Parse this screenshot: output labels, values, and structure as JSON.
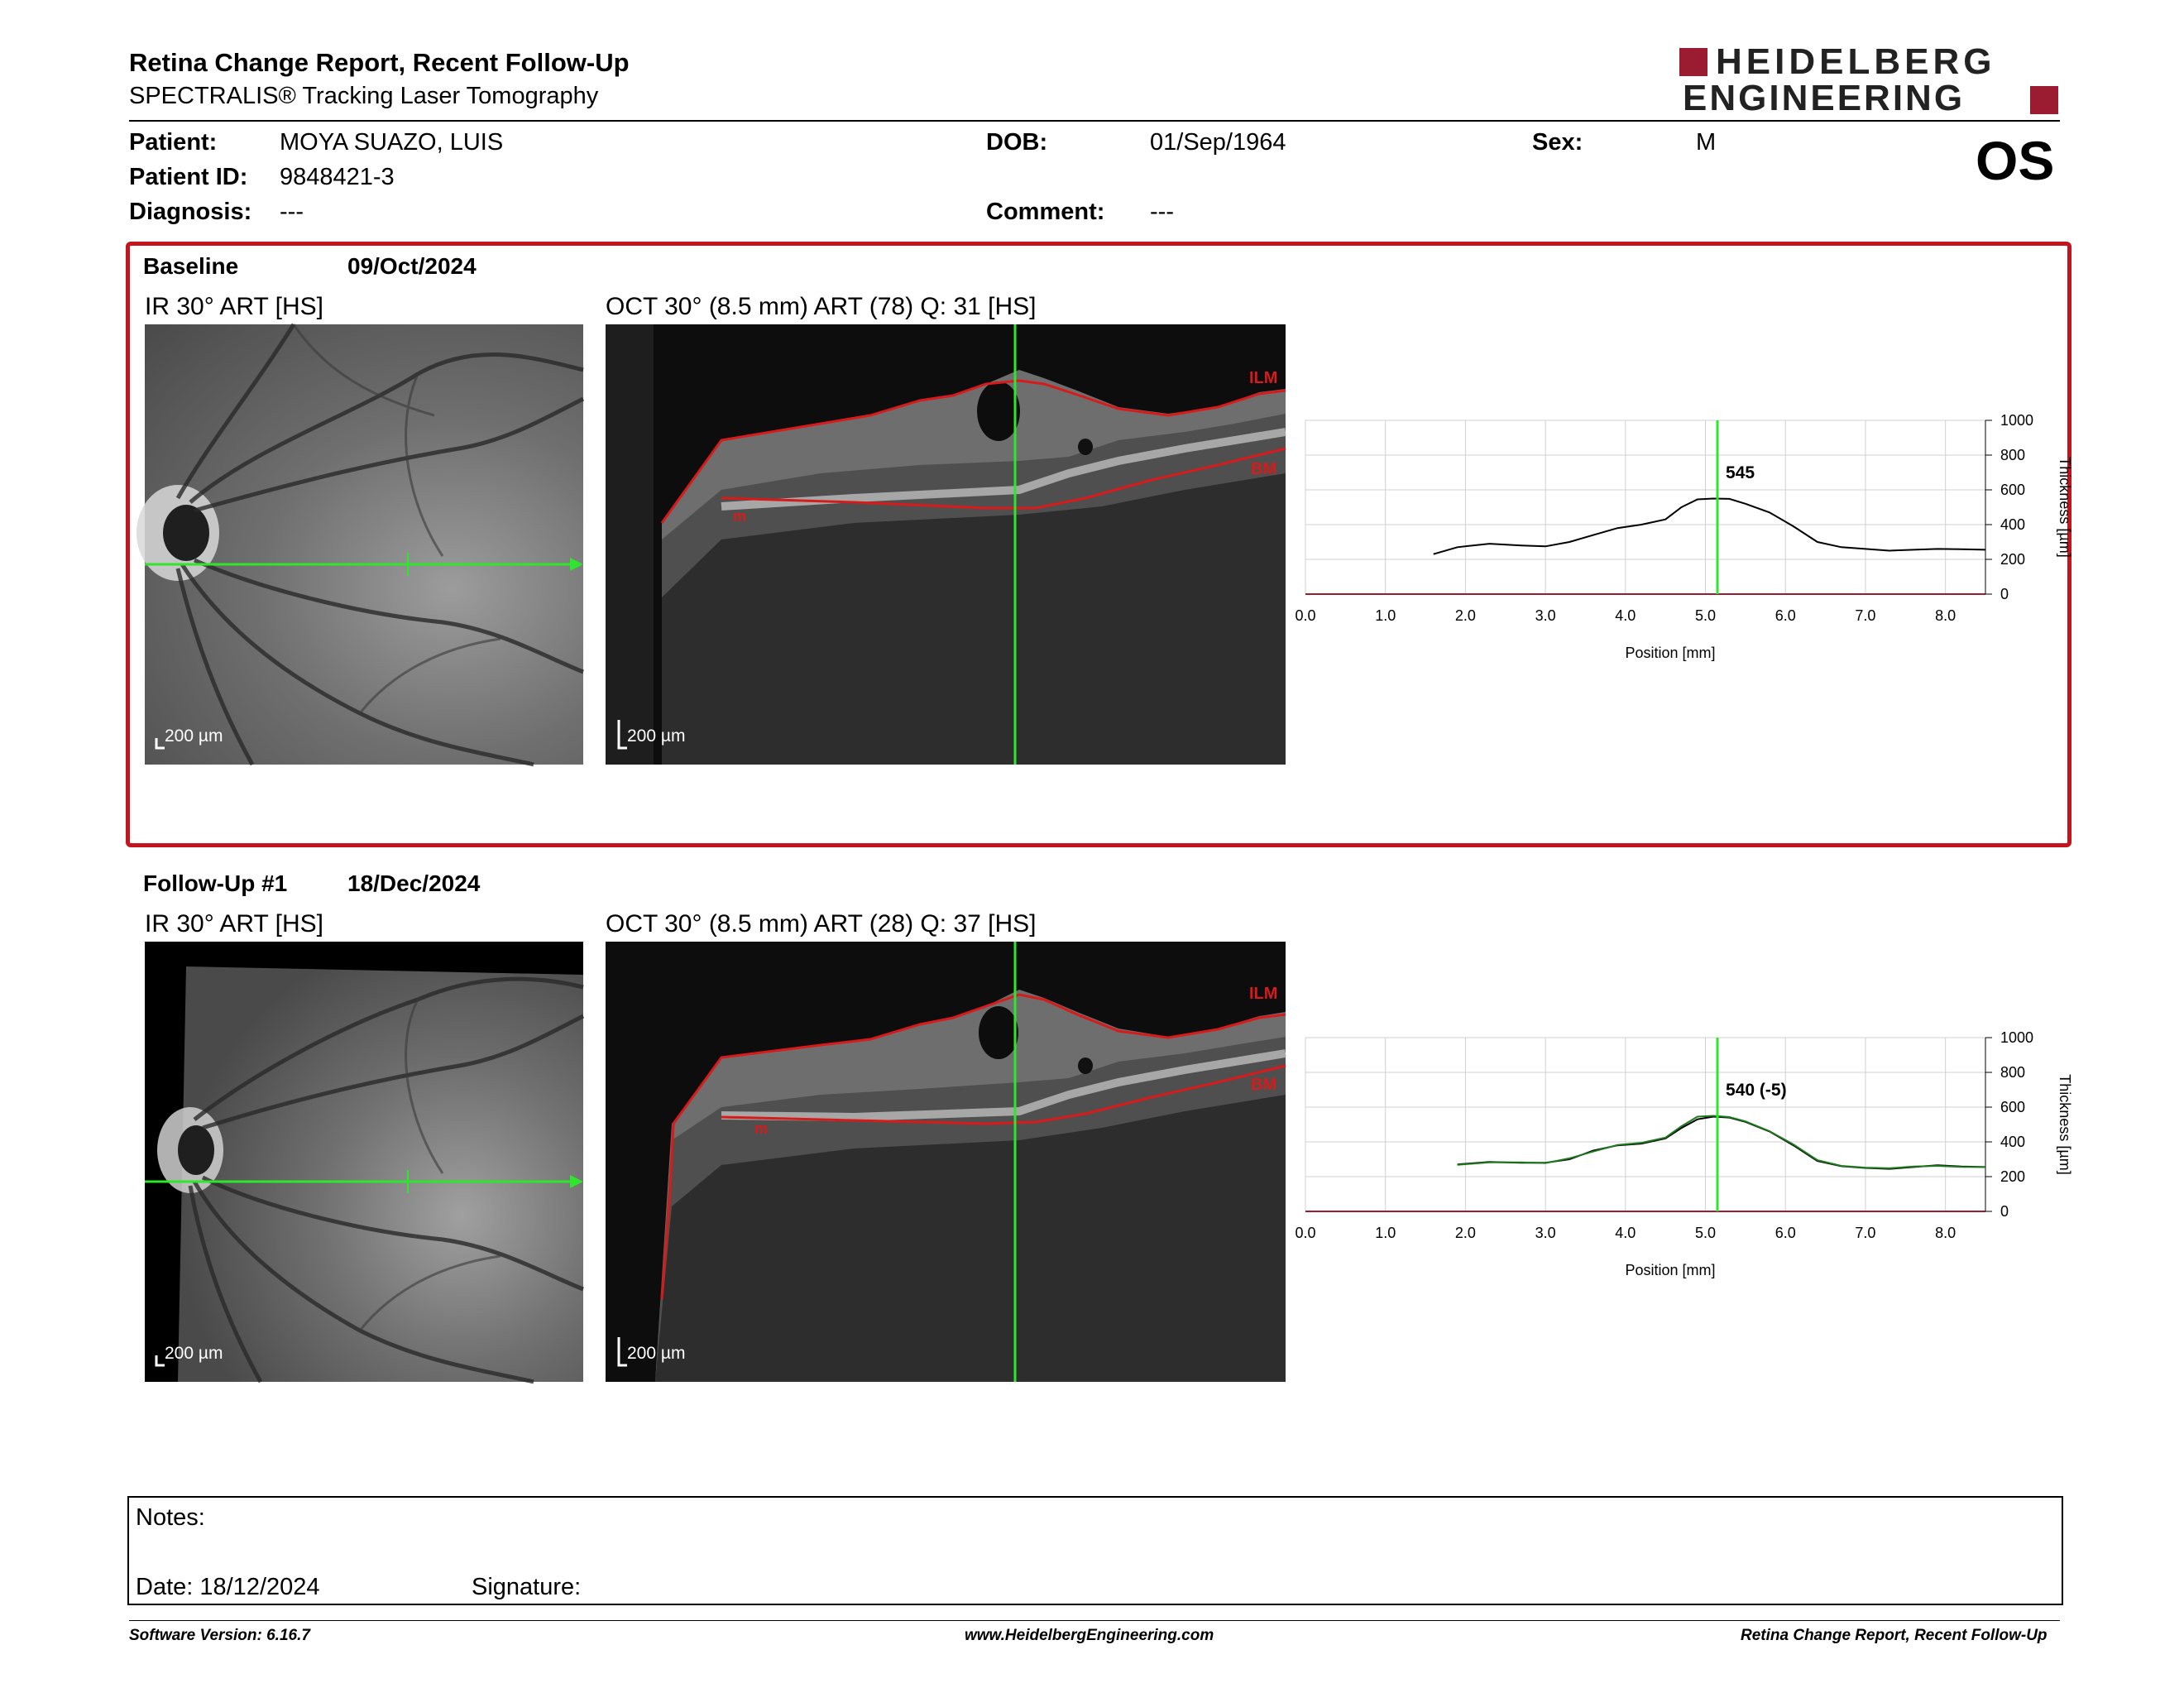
{
  "header": {
    "title": "Retina Change Report, Recent Follow-Up",
    "subtitle": "SPECTRALIS® Tracking Laser Tomography",
    "logo_line1": "HEIDELBERG",
    "logo_line2": "ENGINEERING",
    "eye": "OS"
  },
  "patient": {
    "name_label": "Patient:",
    "name": "MOYA SUAZO, LUIS",
    "id_label": "Patient ID:",
    "id": "9848421-3",
    "diagnosis_label": "Diagnosis:",
    "diagnosis": "---",
    "dob_label": "DOB:",
    "dob": "01/Sep/1964",
    "comment_label": "Comment:",
    "comment": "---",
    "sex_label": "Sex:",
    "sex": "M"
  },
  "colors": {
    "frame": "#c4141e",
    "logo": "#9b1b30",
    "scan_line": "#2ee62e",
    "segmentation": "#d81a1a"
  },
  "baseline": {
    "label": "Baseline",
    "date": "09/Oct/2024",
    "ir_caption": "IR 30° ART [HS]",
    "oct_caption": "OCT 30° (8.5 mm) ART (78) Q: 31 [HS]",
    "ir_scale": "200 µm",
    "oct_scale": "200 µm",
    "ilm_label": "ILM",
    "bm_label": "BM",
    "m_label": "m"
  },
  "followup": {
    "label": "Follow-Up #1",
    "date": "18/Dec/2024",
    "ir_caption": "IR 30° ART [HS]",
    "oct_caption": "OCT 30° (8.5 mm) ART (28) Q: 37 [HS]",
    "ir_scale": "200 µm",
    "oct_scale": "200 µm",
    "ilm_label": "ILM",
    "bm_label": "BM",
    "m_label": "m"
  },
  "chart_data": [
    {
      "type": "line",
      "title": "",
      "xlabel": "Position [mm]",
      "ylabel": "Thickness [µm]",
      "xlim": [
        0,
        8.5
      ],
      "ylim": [
        0,
        1000
      ],
      "x_ticks": [
        "0.0",
        "1.0",
        "2.0",
        "3.0",
        "4.0",
        "5.0",
        "6.0",
        "7.0",
        "8.0"
      ],
      "y_ticks": [
        "0",
        "200",
        "400",
        "600",
        "800",
        "1000"
      ],
      "grid": true,
      "marker_x": 5.15,
      "annotation": "545",
      "series": [
        {
          "x": [
            1.6,
            1.9,
            2.3,
            2.7,
            3.0,
            3.3,
            3.6,
            3.9,
            4.2,
            4.5,
            4.7,
            4.9,
            5.1,
            5.3,
            5.5,
            5.8,
            6.1,
            6.4,
            6.7,
            7.0,
            7.3,
            7.6,
            7.9,
            8.2,
            8.5
          ],
          "values": [
            230,
            270,
            290,
            280,
            275,
            300,
            340,
            380,
            400,
            430,
            500,
            545,
            550,
            548,
            520,
            470,
            390,
            300,
            270,
            260,
            250,
            255,
            260,
            258,
            255
          ]
        }
      ]
    },
    {
      "type": "line",
      "title": "",
      "xlabel": "Position [mm]",
      "ylabel": "Thickness [µm]",
      "xlim": [
        0,
        8.5
      ],
      "ylim": [
        0,
        1000
      ],
      "x_ticks": [
        "0.0",
        "1.0",
        "2.0",
        "3.0",
        "4.0",
        "5.0",
        "6.0",
        "7.0",
        "8.0"
      ],
      "y_ticks": [
        "0",
        "200",
        "400",
        "600",
        "800",
        "1000"
      ],
      "grid": true,
      "marker_x": 5.15,
      "annotation": "540 (-5)",
      "series": [
        {
          "x": [
            1.9,
            2.3,
            2.7,
            3.0,
            3.3,
            3.6,
            3.9,
            4.2,
            4.5,
            4.7,
            4.9,
            5.1,
            5.3,
            5.5,
            5.8,
            6.1,
            6.4,
            6.7,
            7.0,
            7.3,
            7.6,
            7.9,
            8.2,
            8.5
          ],
          "values": [
            270,
            285,
            280,
            280,
            300,
            350,
            380,
            390,
            420,
            480,
            530,
            545,
            540,
            515,
            460,
            380,
            290,
            260,
            250,
            245,
            255,
            265,
            258,
            255
          ]
        },
        {
          "x": [
            1.9,
            2.3,
            2.7,
            3.0,
            3.3,
            3.6,
            3.9,
            4.2,
            4.5,
            4.7,
            4.9,
            5.1,
            5.3,
            5.5,
            5.8,
            6.1,
            6.4,
            6.7,
            7.0,
            7.3,
            7.6,
            7.9,
            8.2,
            8.5
          ],
          "values": [
            268,
            282,
            282,
            278,
            305,
            345,
            382,
            395,
            425,
            490,
            545,
            550,
            543,
            518,
            462,
            385,
            295,
            262,
            252,
            248,
            258,
            262,
            256,
            255
          ]
        }
      ]
    }
  ],
  "notes": {
    "notes_label": "Notes:",
    "date_label": "Date: 18/12/2024",
    "signature_label": "Signature:"
  },
  "footer": {
    "left": "Software Version: 6.16.7",
    "center": "www.HeidelbergEngineering.com",
    "right": "Retina Change Report, Recent Follow-Up"
  }
}
